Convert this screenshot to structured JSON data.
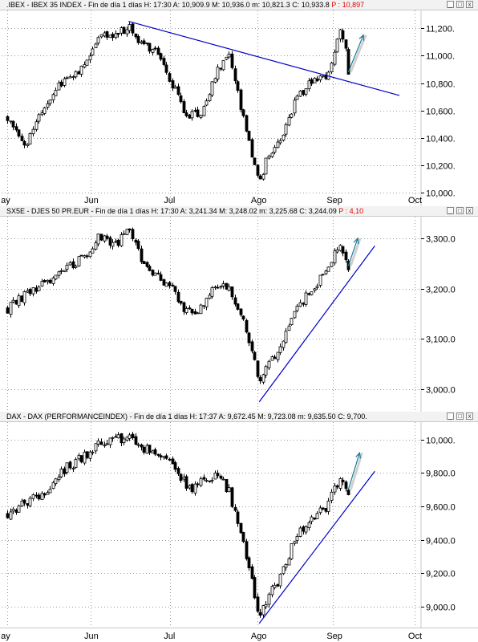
{
  "panels": [
    {
      "header": {
        "text": ".IBEX - IBEX 35 INDEX - Fin de día 1 días  H: 17:30  A: 10,909.9  M: 10,936.0  m: 10,821.3  C: 10,933.8 ",
        "p_text": "P : 10,897"
      },
      "controls": {
        "minimize": "_",
        "maximize": "□",
        "close": "x"
      },
      "chart_data": {
        "type": "candlestick",
        "title": ".IBEX - IBEX 35 INDEX",
        "ylim": [
          9950,
          11300
        ],
        "yticks": [
          10000,
          10200,
          10400,
          10600,
          10800,
          11000,
          11200
        ],
        "ytick_labels": [
          "10,000.",
          "10,200.",
          "10,400.",
          "10,600.",
          "10,800.",
          "11,000.",
          "11,200."
        ],
        "anchors": [
          [
            0,
            10560
          ],
          [
            10,
            10350
          ],
          [
            20,
            10640
          ],
          [
            30,
            10830
          ],
          [
            40,
            10920
          ],
          [
            48,
            11150
          ],
          [
            58,
            11160
          ],
          [
            64,
            11220
          ],
          [
            72,
            11060
          ],
          [
            80,
            11040
          ],
          [
            86,
            10810
          ],
          [
            95,
            10560
          ],
          [
            103,
            10600
          ],
          [
            110,
            10880
          ],
          [
            117,
            11010
          ],
          [
            122,
            10680
          ],
          [
            128,
            10320
          ],
          [
            133,
            10050
          ],
          [
            137,
            10250
          ],
          [
            145,
            10420
          ],
          [
            152,
            10680
          ],
          [
            160,
            10800
          ],
          [
            168,
            10830
          ],
          [
            172,
            11010
          ],
          [
            175,
            11180
          ],
          [
            178,
            11090
          ],
          [
            180,
            10860
          ],
          [
            181,
            10930
          ]
        ],
        "trendline": {
          "color": "#0000cc",
          "points": [
            [
              64,
              11250
            ],
            [
              207,
              10710
            ]
          ]
        },
        "arrow": {
          "color": "#1a7a99",
          "from": [
            180,
            10880
          ],
          "to": [
            188,
            11150
          ]
        },
        "x_labels": [
          {
            "t": 0,
            "label": "ay"
          },
          {
            "t": 44,
            "label": "Jun"
          },
          {
            "t": 86,
            "label": "Jul"
          },
          {
            "t": 132,
            "label": "Ago"
          },
          {
            "t": 172,
            "label": "Sep"
          },
          {
            "t": 215,
            "label": "Oct"
          }
        ]
      }
    },
    {
      "header": {
        "text": "SX5E - DJES 50 PR.EUR - Fin de día 1 días  H: 17:30  A: 3,241.34  M: 3,248.02  m: 3,225.68  C: 3,244.09 ",
        "p_text": "P : 4,10"
      },
      "controls": {
        "minimize": "_",
        "maximize": "□",
        "close": "x"
      },
      "chart_data": {
        "type": "candlestick",
        "title": "SX5E - DJES 50 PR.EUR",
        "ylim": [
          2965,
          3335
        ],
        "yticks": [
          3000,
          3100,
          3200,
          3300
        ],
        "ytick_labels": [
          "3,000.0",
          "3,100.0",
          "3,200.0",
          "3,300.0"
        ],
        "anchors": [
          [
            0,
            3160
          ],
          [
            10,
            3190
          ],
          [
            20,
            3210
          ],
          [
            30,
            3240
          ],
          [
            40,
            3260
          ],
          [
            48,
            3300
          ],
          [
            58,
            3290
          ],
          [
            64,
            3315
          ],
          [
            72,
            3250
          ],
          [
            80,
            3220
          ],
          [
            86,
            3210
          ],
          [
            95,
            3150
          ],
          [
            103,
            3160
          ],
          [
            110,
            3210
          ],
          [
            117,
            3200
          ],
          [
            122,
            3160
          ],
          [
            128,
            3090
          ],
          [
            133,
            3010
          ],
          [
            137,
            3050
          ],
          [
            145,
            3090
          ],
          [
            152,
            3150
          ],
          [
            160,
            3200
          ],
          [
            168,
            3230
          ],
          [
            172,
            3270
          ],
          [
            175,
            3285
          ],
          [
            178,
            3265
          ],
          [
            180,
            3240
          ],
          [
            181,
            3244
          ]
        ],
        "trendline": {
          "color": "#0000cc",
          "points": [
            [
              133,
              2975
            ],
            [
              194,
              3285
            ]
          ]
        },
        "arrow": {
          "color": "#1a7a99",
          "from": [
            180,
            3245
          ],
          "to": [
            185,
            3300
          ]
        },
        "x_labels": []
      }
    },
    {
      "header": {
        "text": "DAX - DAX (PERFORMANCEINDEX) - Fin de día 1 días  H: 17:37  A: 9,672.45  M: 9,723.08  m: 9,635.50  C: 9,700.",
        "p_text": ""
      },
      "controls": {
        "minimize": "_",
        "maximize": "□",
        "close": "x"
      },
      "chart_data": {
        "type": "candlestick",
        "title": "DAX - DAX (PERFORMANCEINDEX)",
        "ylim": [
          8880,
          10080
        ],
        "yticks": [
          9000,
          9200,
          9400,
          9600,
          9800,
          10000
        ],
        "ytick_labels": [
          "9,000.0",
          "9,200.0",
          "9,400.0",
          "9,600.0",
          "9,800.0",
          "10,000."
        ],
        "anchors": [
          [
            0,
            9560
          ],
          [
            10,
            9620
          ],
          [
            20,
            9700
          ],
          [
            30,
            9820
          ],
          [
            40,
            9900
          ],
          [
            48,
            9980
          ],
          [
            58,
            10000
          ],
          [
            64,
            10010
          ],
          [
            72,
            9950
          ],
          [
            80,
            9880
          ],
          [
            86,
            9900
          ],
          [
            95,
            9700
          ],
          [
            103,
            9750
          ],
          [
            110,
            9800
          ],
          [
            117,
            9690
          ],
          [
            122,
            9480
          ],
          [
            128,
            9200
          ],
          [
            133,
            8950
          ],
          [
            137,
            9050
          ],
          [
            145,
            9200
          ],
          [
            152,
            9420
          ],
          [
            160,
            9520
          ],
          [
            168,
            9600
          ],
          [
            172,
            9680
          ],
          [
            175,
            9760
          ],
          [
            178,
            9750
          ],
          [
            180,
            9690
          ],
          [
            181,
            9700
          ]
        ],
        "trendline": {
          "color": "#0000cc",
          "points": [
            [
              133,
              8900
            ],
            [
              194,
              9810
            ]
          ]
        },
        "arrow": {
          "color": "#1a7a99",
          "from": [
            180,
            9700
          ],
          "to": [
            186,
            9920
          ]
        },
        "x_labels": [
          {
            "t": 0,
            "label": "ay"
          },
          {
            "t": 44,
            "label": "Jun"
          },
          {
            "t": 86,
            "label": "Jul"
          },
          {
            "t": 132,
            "label": "Ago"
          },
          {
            "t": 172,
            "label": "Sep"
          },
          {
            "t": 215,
            "label": "Oct"
          }
        ]
      }
    }
  ]
}
